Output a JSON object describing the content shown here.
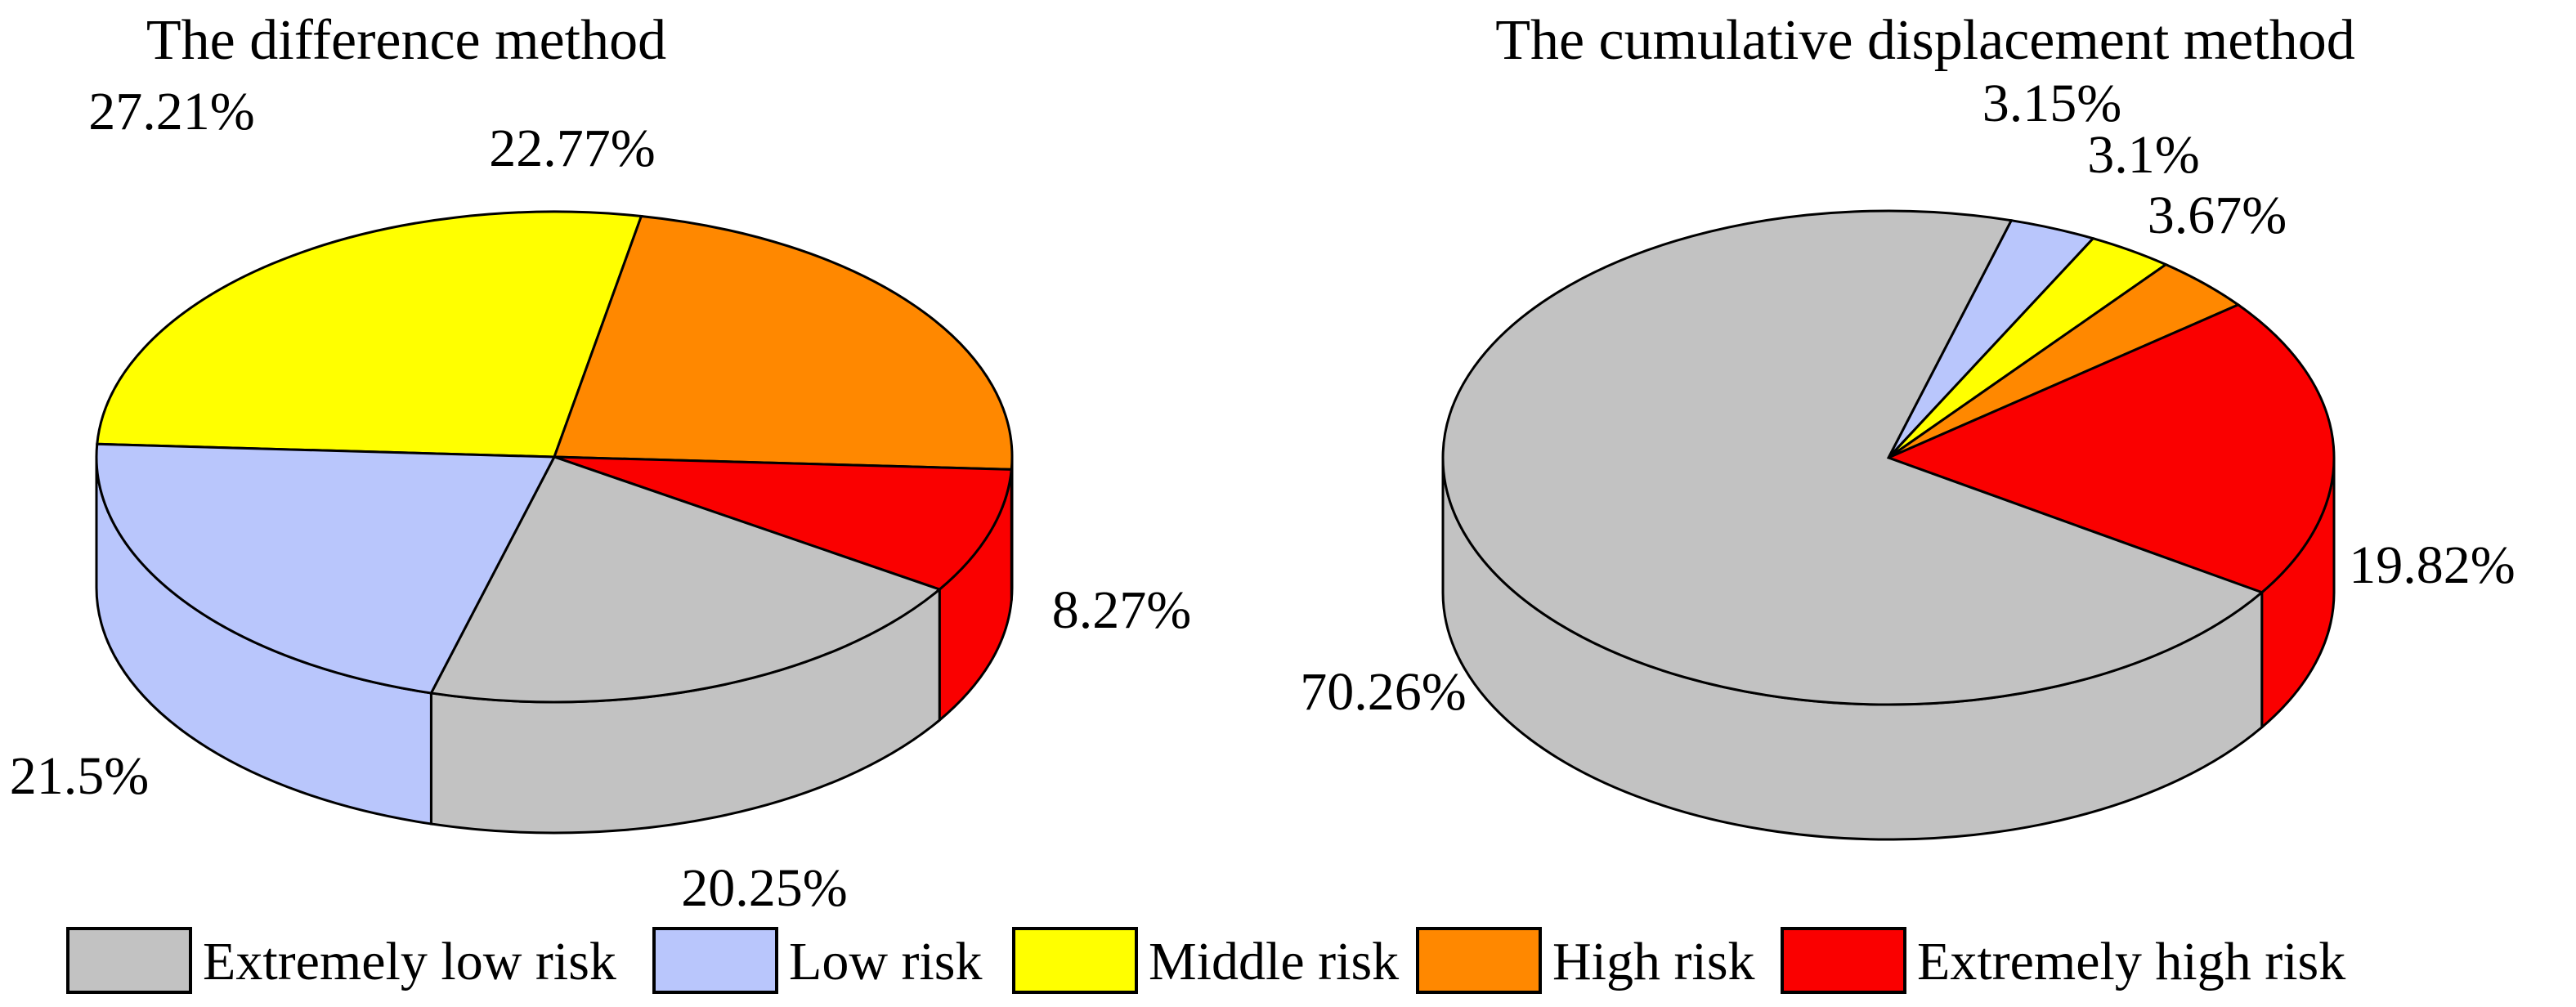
{
  "chart_data": [
    {
      "type": "pie",
      "style": "3d-pie",
      "title": "The difference method",
      "categories": [
        "Middle risk",
        "High risk",
        "Extremely high risk",
        "Extremely low risk",
        "Low risk"
      ],
      "values": [
        27.21,
        22.77,
        8.27,
        20.25,
        21.5
      ],
      "labels": [
        "27.21%",
        "22.77%",
        "8.27%",
        "20.25%",
        "21.5%"
      ],
      "colors": [
        "#FFFF00",
        "#FF8800",
        "#FA0000",
        "#C2C2C2",
        "#B9C6FC"
      ],
      "start_angle_deg": 177,
      "direction": "clockwise",
      "legend_position": "bottom"
    },
    {
      "type": "pie",
      "style": "3d-pie",
      "title": "The cumulative displacement method",
      "categories": [
        "Low risk",
        "Middle risk",
        "High risk",
        "Extremely high risk",
        "Extremely low risk"
      ],
      "values": [
        3.15,
        3.1,
        3.67,
        19.82,
        70.26
      ],
      "labels": [
        "3.15%",
        "3.1%",
        "3.67%",
        "19.82%",
        "70.26%"
      ],
      "colors": [
        "#B9C6FC",
        "#FFFF00",
        "#FF8800",
        "#FA0000",
        "#C2C2C2"
      ],
      "start_angle_deg": 74,
      "direction": "clockwise",
      "legend_position": "bottom"
    }
  ],
  "legend": {
    "items": [
      {
        "label": "Extremely low risk",
        "color": "#C2C2C2"
      },
      {
        "label": "Low risk",
        "color": "#B9C6FC"
      },
      {
        "label": "Middle risk",
        "color": "#FFFF00"
      },
      {
        "label": "High risk",
        "color": "#FF8800"
      },
      {
        "label": "Extremely high risk",
        "color": "#FA0000"
      }
    ]
  },
  "style": {
    "outline_color": "#000000",
    "background_color": "#FFFFFF"
  }
}
